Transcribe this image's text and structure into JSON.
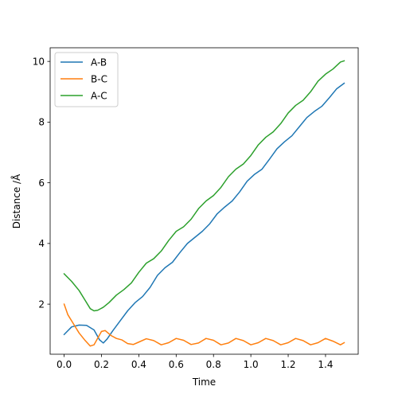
{
  "chart_data": {
    "type": "line",
    "title": "",
    "xlabel": "Time",
    "ylabel": "Distance /Å",
    "xlim": [
      -0.075,
      1.575
    ],
    "ylim": [
      0.35,
      10.45
    ],
    "xticks": [
      0.0,
      0.2,
      0.4,
      0.6,
      0.8,
      1.0,
      1.2,
      1.4
    ],
    "xtick_labels": [
      "0.0",
      "0.2",
      "0.4",
      "0.6",
      "0.8",
      "1.0",
      "1.2",
      "1.4"
    ],
    "yticks": [
      2,
      4,
      6,
      8,
      10
    ],
    "ytick_labels": [
      "2",
      "4",
      "6",
      "8",
      "10"
    ],
    "grid": false,
    "legend_position": "top-left",
    "series": [
      {
        "name": "A-B",
        "color": "#1f77b4",
        "x": [
          0.0,
          0.04,
          0.08,
          0.12,
          0.16,
          0.19,
          0.21,
          0.23,
          0.26,
          0.3,
          0.34,
          0.38,
          0.42,
          0.46,
          0.5,
          0.54,
          0.58,
          0.62,
          0.66,
          0.7,
          0.74,
          0.78,
          0.82,
          0.86,
          0.9,
          0.94,
          0.98,
          1.02,
          1.06,
          1.1,
          1.14,
          1.18,
          1.22,
          1.26,
          1.3,
          1.34,
          1.38,
          1.42,
          1.46,
          1.5
        ],
        "y": [
          1.0,
          1.25,
          1.31,
          1.3,
          1.15,
          0.82,
          0.72,
          0.85,
          1.12,
          1.45,
          1.78,
          2.05,
          2.25,
          2.55,
          2.95,
          3.2,
          3.38,
          3.7,
          4.0,
          4.2,
          4.4,
          4.65,
          4.98,
          5.2,
          5.4,
          5.7,
          6.05,
          6.28,
          6.45,
          6.78,
          7.12,
          7.35,
          7.55,
          7.85,
          8.15,
          8.35,
          8.52,
          8.8,
          9.1,
          9.28
        ]
      },
      {
        "name": "B-C",
        "color": "#ff7f0e",
        "x": [
          0.0,
          0.02,
          0.05,
          0.08,
          0.11,
          0.14,
          0.16,
          0.18,
          0.2,
          0.22,
          0.25,
          0.28,
          0.31,
          0.34,
          0.37,
          0.4,
          0.44,
          0.48,
          0.52,
          0.56,
          0.6,
          0.64,
          0.68,
          0.72,
          0.76,
          0.8,
          0.84,
          0.88,
          0.92,
          0.96,
          1.0,
          1.04,
          1.08,
          1.12,
          1.16,
          1.2,
          1.24,
          1.28,
          1.32,
          1.36,
          1.4,
          1.44,
          1.48,
          1.5
        ],
        "y": [
          2.0,
          1.65,
          1.35,
          1.05,
          0.82,
          0.62,
          0.66,
          0.88,
          1.1,
          1.13,
          0.97,
          0.87,
          0.82,
          0.7,
          0.67,
          0.75,
          0.86,
          0.8,
          0.66,
          0.73,
          0.87,
          0.81,
          0.67,
          0.72,
          0.87,
          0.81,
          0.66,
          0.72,
          0.87,
          0.8,
          0.66,
          0.73,
          0.87,
          0.8,
          0.66,
          0.73,
          0.87,
          0.8,
          0.66,
          0.73,
          0.87,
          0.78,
          0.66,
          0.73
        ]
      },
      {
        "name": "A-C",
        "color": "#2ca02c",
        "x": [
          0.0,
          0.04,
          0.08,
          0.11,
          0.14,
          0.16,
          0.18,
          0.21,
          0.24,
          0.28,
          0.32,
          0.36,
          0.4,
          0.44,
          0.48,
          0.52,
          0.56,
          0.6,
          0.64,
          0.68,
          0.72,
          0.76,
          0.8,
          0.84,
          0.88,
          0.92,
          0.96,
          1.0,
          1.04,
          1.08,
          1.12,
          1.16,
          1.2,
          1.24,
          1.28,
          1.32,
          1.36,
          1.4,
          1.44,
          1.48,
          1.5
        ],
        "y": [
          3.0,
          2.75,
          2.45,
          2.15,
          1.85,
          1.78,
          1.8,
          1.9,
          2.05,
          2.3,
          2.48,
          2.7,
          3.05,
          3.35,
          3.5,
          3.75,
          4.1,
          4.4,
          4.55,
          4.8,
          5.15,
          5.4,
          5.58,
          5.85,
          6.2,
          6.45,
          6.62,
          6.9,
          7.25,
          7.5,
          7.68,
          7.95,
          8.3,
          8.55,
          8.72,
          9.0,
          9.35,
          9.58,
          9.75,
          9.98,
          10.02
        ]
      }
    ]
  }
}
